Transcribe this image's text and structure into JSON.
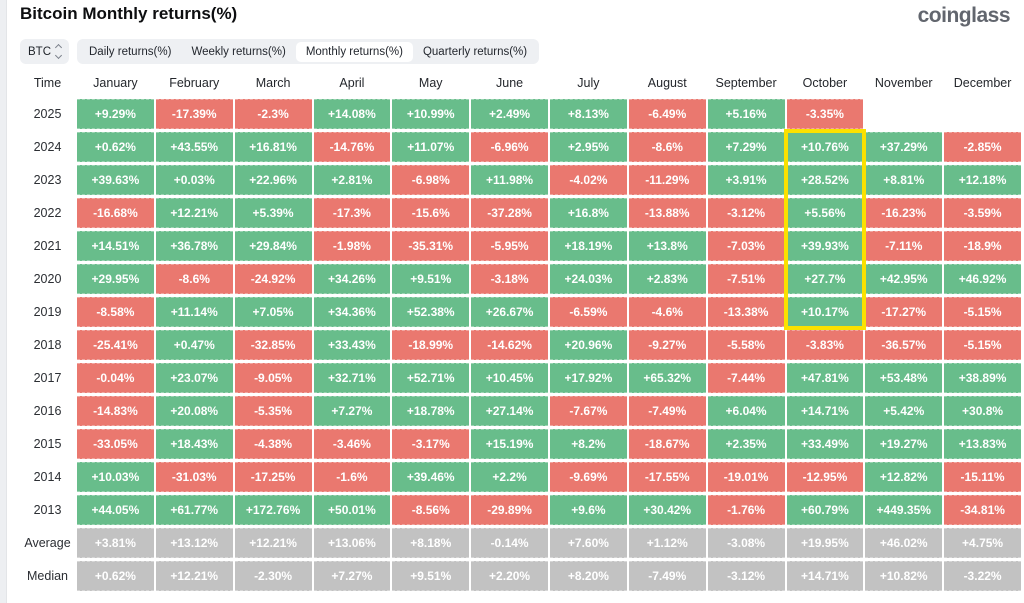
{
  "header": {
    "title": "Bitcoin Monthly returns(%)",
    "logo": "coinglass"
  },
  "controls": {
    "symbol": "BTC",
    "tabs": [
      {
        "label": "Daily returns(%)",
        "active": false
      },
      {
        "label": "Weekly returns(%)",
        "active": false
      },
      {
        "label": "Monthly returns(%)",
        "active": true
      },
      {
        "label": "Quarterly returns(%)",
        "active": false
      }
    ]
  },
  "colors": {
    "positive": "#68bd8b",
    "negative": "#ea786f",
    "neutral": "#c2c2c2",
    "highlight": "#fbe100"
  },
  "chart_data": {
    "type": "table",
    "title": "Bitcoin Monthly returns(%)",
    "columns": [
      "Time",
      "January",
      "February",
      "March",
      "April",
      "May",
      "June",
      "July",
      "August",
      "September",
      "October",
      "November",
      "December"
    ],
    "rows": [
      {
        "label": "2025",
        "values": [
          "+9.29%",
          "-17.39%",
          "-2.3%",
          "+14.08%",
          "+10.99%",
          "+2.49%",
          "+8.13%",
          "-6.49%",
          "+5.16%",
          "-3.35%",
          null,
          null
        ]
      },
      {
        "label": "2024",
        "values": [
          "+0.62%",
          "+43.55%",
          "+16.81%",
          "-14.76%",
          "+11.07%",
          "-6.96%",
          "+2.95%",
          "-8.6%",
          "+7.29%",
          "+10.76%",
          "+37.29%",
          "-2.85%"
        ]
      },
      {
        "label": "2023",
        "values": [
          "+39.63%",
          "+0.03%",
          "+22.96%",
          "+2.81%",
          "-6.98%",
          "+11.98%",
          "-4.02%",
          "-11.29%",
          "+3.91%",
          "+28.52%",
          "+8.81%",
          "+12.18%"
        ]
      },
      {
        "label": "2022",
        "values": [
          "-16.68%",
          "+12.21%",
          "+5.39%",
          "-17.3%",
          "-15.6%",
          "-37.28%",
          "+16.8%",
          "-13.88%",
          "-3.12%",
          "+5.56%",
          "-16.23%",
          "-3.59%"
        ]
      },
      {
        "label": "2021",
        "values": [
          "+14.51%",
          "+36.78%",
          "+29.84%",
          "-1.98%",
          "-35.31%",
          "-5.95%",
          "+18.19%",
          "+13.8%",
          "-7.03%",
          "+39.93%",
          "-7.11%",
          "-18.9%"
        ]
      },
      {
        "label": "2020",
        "values": [
          "+29.95%",
          "-8.6%",
          "-24.92%",
          "+34.26%",
          "+9.51%",
          "-3.18%",
          "+24.03%",
          "+2.83%",
          "-7.51%",
          "+27.7%",
          "+42.95%",
          "+46.92%"
        ]
      },
      {
        "label": "2019",
        "values": [
          "-8.58%",
          "+11.14%",
          "+7.05%",
          "+34.36%",
          "+52.38%",
          "+26.67%",
          "-6.59%",
          "-4.6%",
          "-13.38%",
          "+10.17%",
          "-17.27%",
          "-5.15%"
        ]
      },
      {
        "label": "2018",
        "values": [
          "-25.41%",
          "+0.47%",
          "-32.85%",
          "+33.43%",
          "-18.99%",
          "-14.62%",
          "+20.96%",
          "-9.27%",
          "-5.58%",
          "-3.83%",
          "-36.57%",
          "-5.15%"
        ]
      },
      {
        "label": "2017",
        "values": [
          "-0.04%",
          "+23.07%",
          "-9.05%",
          "+32.71%",
          "+52.71%",
          "+10.45%",
          "+17.92%",
          "+65.32%",
          "-7.44%",
          "+47.81%",
          "+53.48%",
          "+38.89%"
        ]
      },
      {
        "label": "2016",
        "values": [
          "-14.83%",
          "+20.08%",
          "-5.35%",
          "+7.27%",
          "+18.78%",
          "+27.14%",
          "-7.67%",
          "-7.49%",
          "+6.04%",
          "+14.71%",
          "+5.42%",
          "+30.8%"
        ]
      },
      {
        "label": "2015",
        "values": [
          "-33.05%",
          "+18.43%",
          "-4.38%",
          "-3.46%",
          "-3.17%",
          "+15.19%",
          "+8.2%",
          "-18.67%",
          "+2.35%",
          "+33.49%",
          "+19.27%",
          "+13.83%"
        ]
      },
      {
        "label": "2014",
        "values": [
          "+10.03%",
          "-31.03%",
          "-17.25%",
          "-1.6%",
          "+39.46%",
          "+2.2%",
          "-9.69%",
          "-17.55%",
          "-19.01%",
          "-12.95%",
          "+12.82%",
          "-15.11%"
        ]
      },
      {
        "label": "2013",
        "values": [
          "+44.05%",
          "+61.77%",
          "+172.76%",
          "+50.01%",
          "-8.56%",
          "-29.89%",
          "+9.6%",
          "+30.42%",
          "-1.76%",
          "+60.79%",
          "+449.35%",
          "-34.81%"
        ]
      },
      {
        "label": "Average",
        "type": "neutral",
        "values": [
          "+3.81%",
          "+13.12%",
          "+12.21%",
          "+13.06%",
          "+8.18%",
          "-0.14%",
          "+7.60%",
          "+1.12%",
          "-3.08%",
          "+19.95%",
          "+46.02%",
          "+4.75%"
        ]
      },
      {
        "label": "Median",
        "type": "neutral",
        "values": [
          "+0.62%",
          "+12.21%",
          "-2.30%",
          "+7.27%",
          "+9.51%",
          "+2.20%",
          "+8.20%",
          "-7.49%",
          "-3.12%",
          "+14.71%",
          "+10.82%",
          "-3.22%"
        ]
      }
    ],
    "highlight": {
      "column": "October",
      "from_row": "2024",
      "to_row": "2019"
    }
  }
}
